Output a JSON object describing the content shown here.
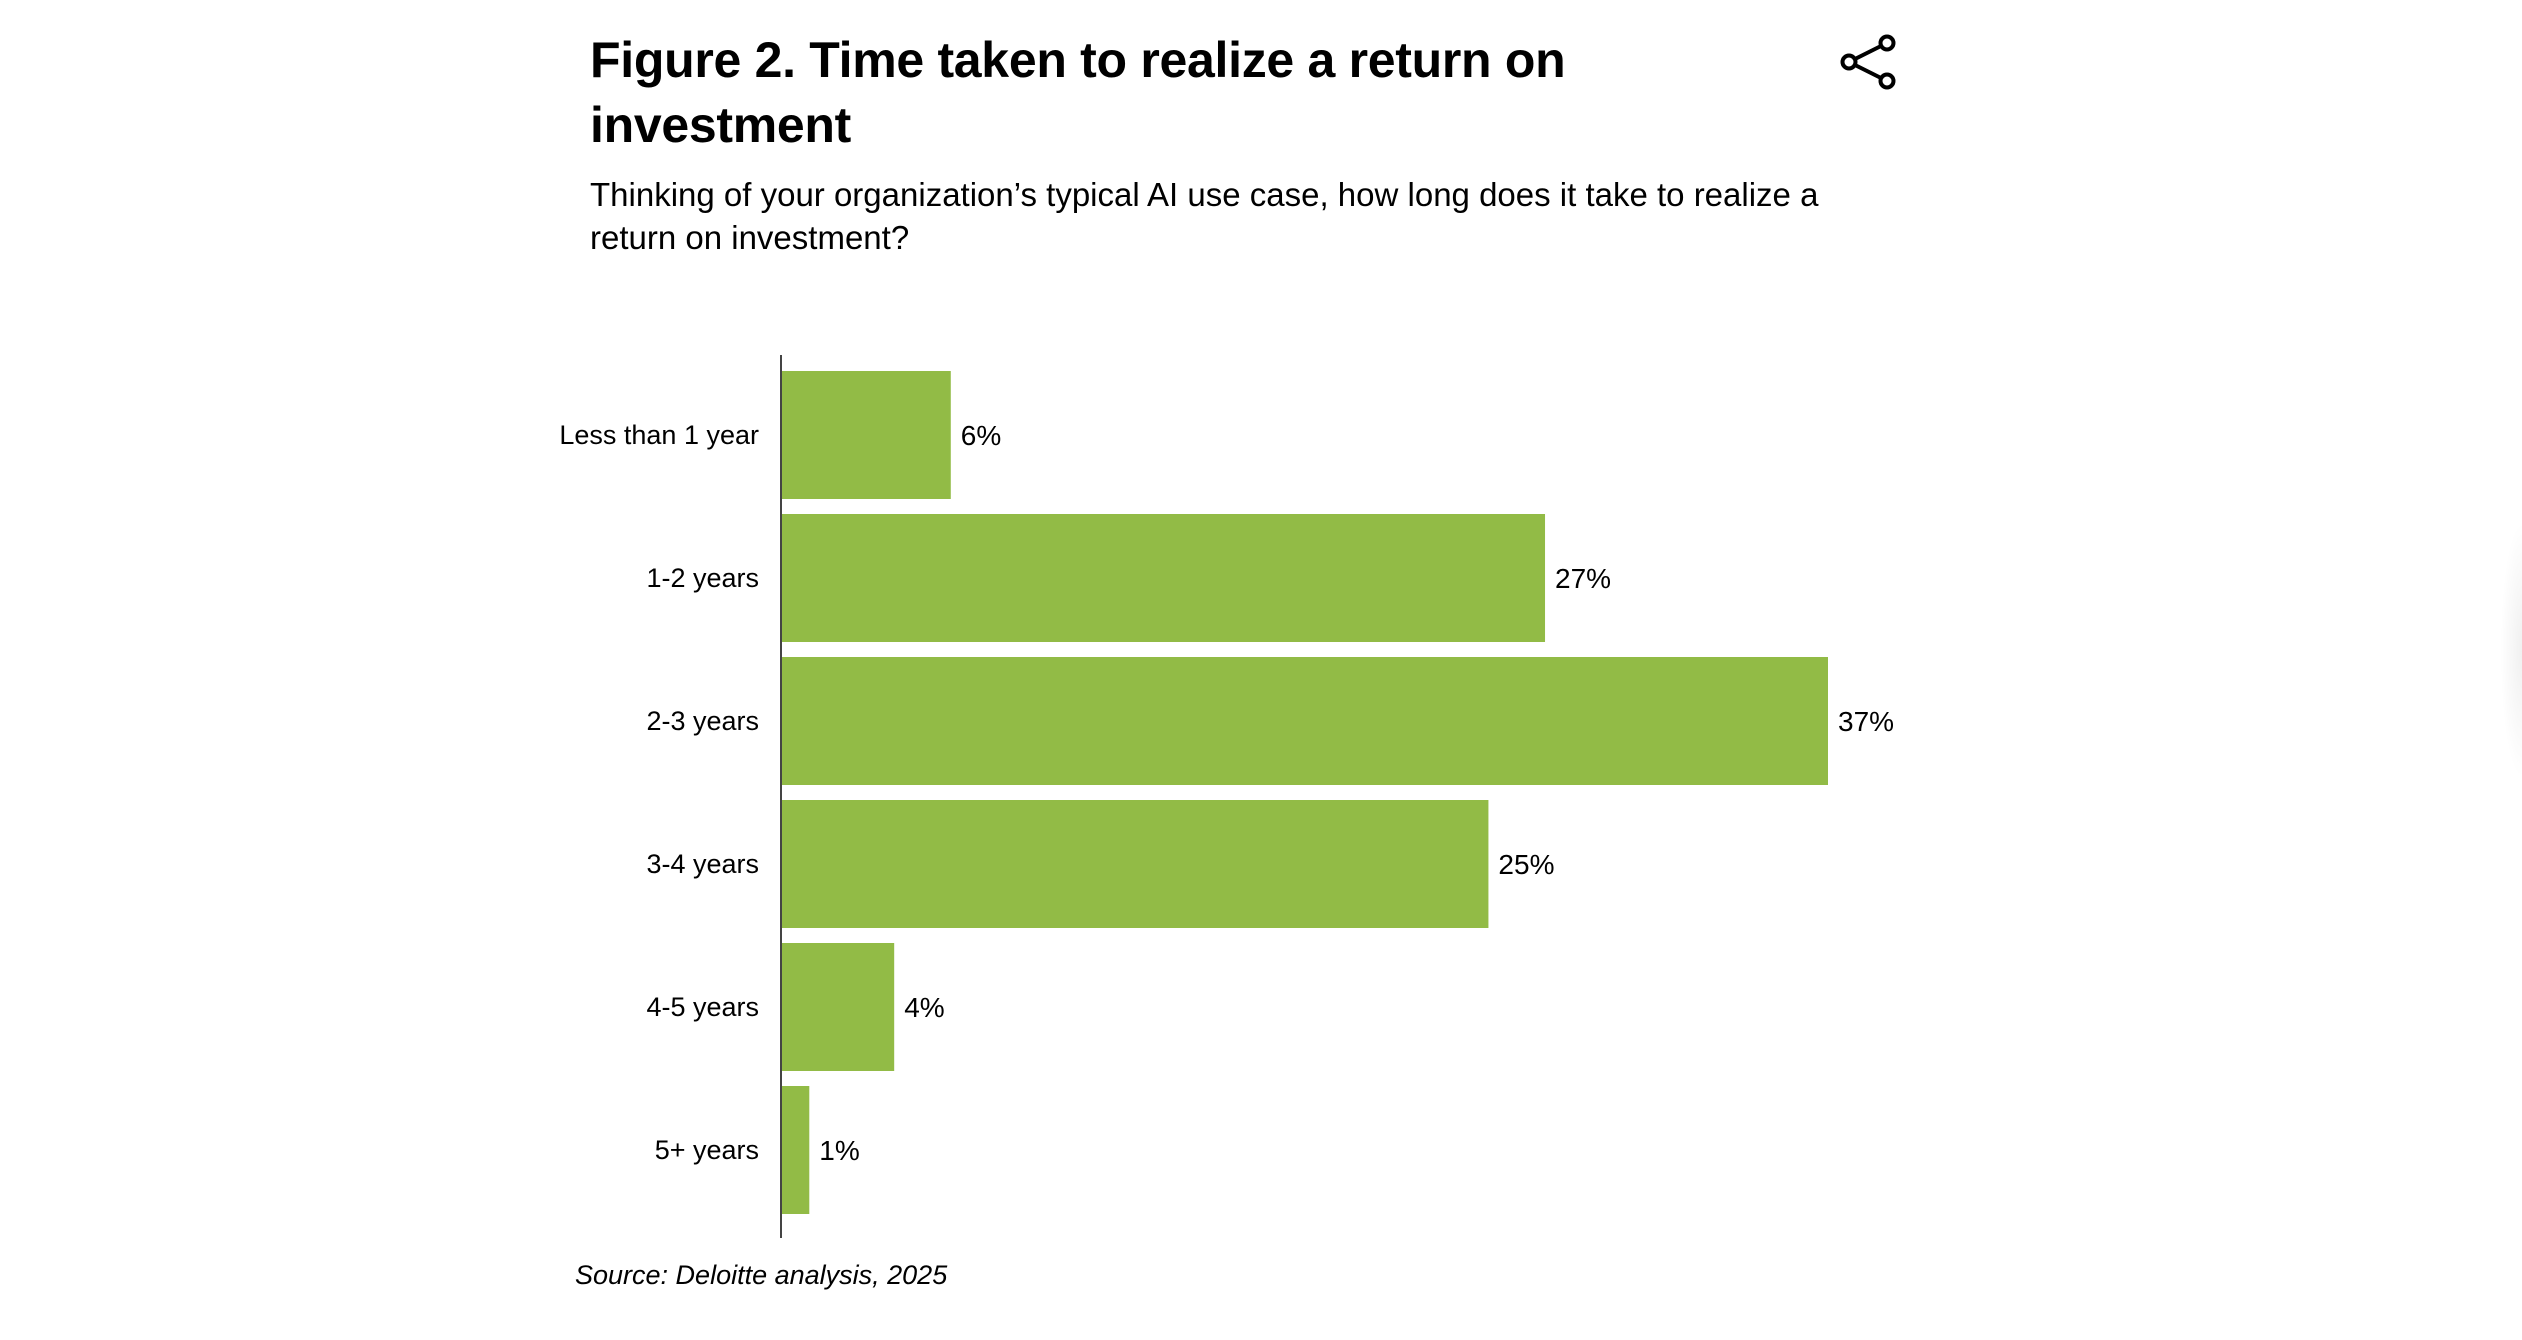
{
  "figure": {
    "title": "Figure 2. Time taken to realize a return on investment",
    "subtitle": "Thinking of your organization’s typical AI use case, how long does it take to realize a return on investment?",
    "source": "Source: Deloitte analysis, 2025",
    "share_icon": "share-icon"
  },
  "colors": {
    "bar": "#92BB46",
    "axis": "#444444",
    "text": "#000000"
  },
  "chart_data": {
    "type": "bar",
    "orientation": "horizontal",
    "categories": [
      "Less than 1 year",
      "1-2 years",
      "2-3 years",
      "3-4 years",
      "4-5 years",
      "5+ years"
    ],
    "values": [
      6,
      27,
      37,
      25,
      4,
      1
    ],
    "value_labels": [
      "6%",
      "27%",
      "37%",
      "25%",
      "4%",
      "1%"
    ],
    "unit": "%",
    "xlim": [
      0,
      37
    ],
    "grid": false,
    "legend": "none"
  }
}
